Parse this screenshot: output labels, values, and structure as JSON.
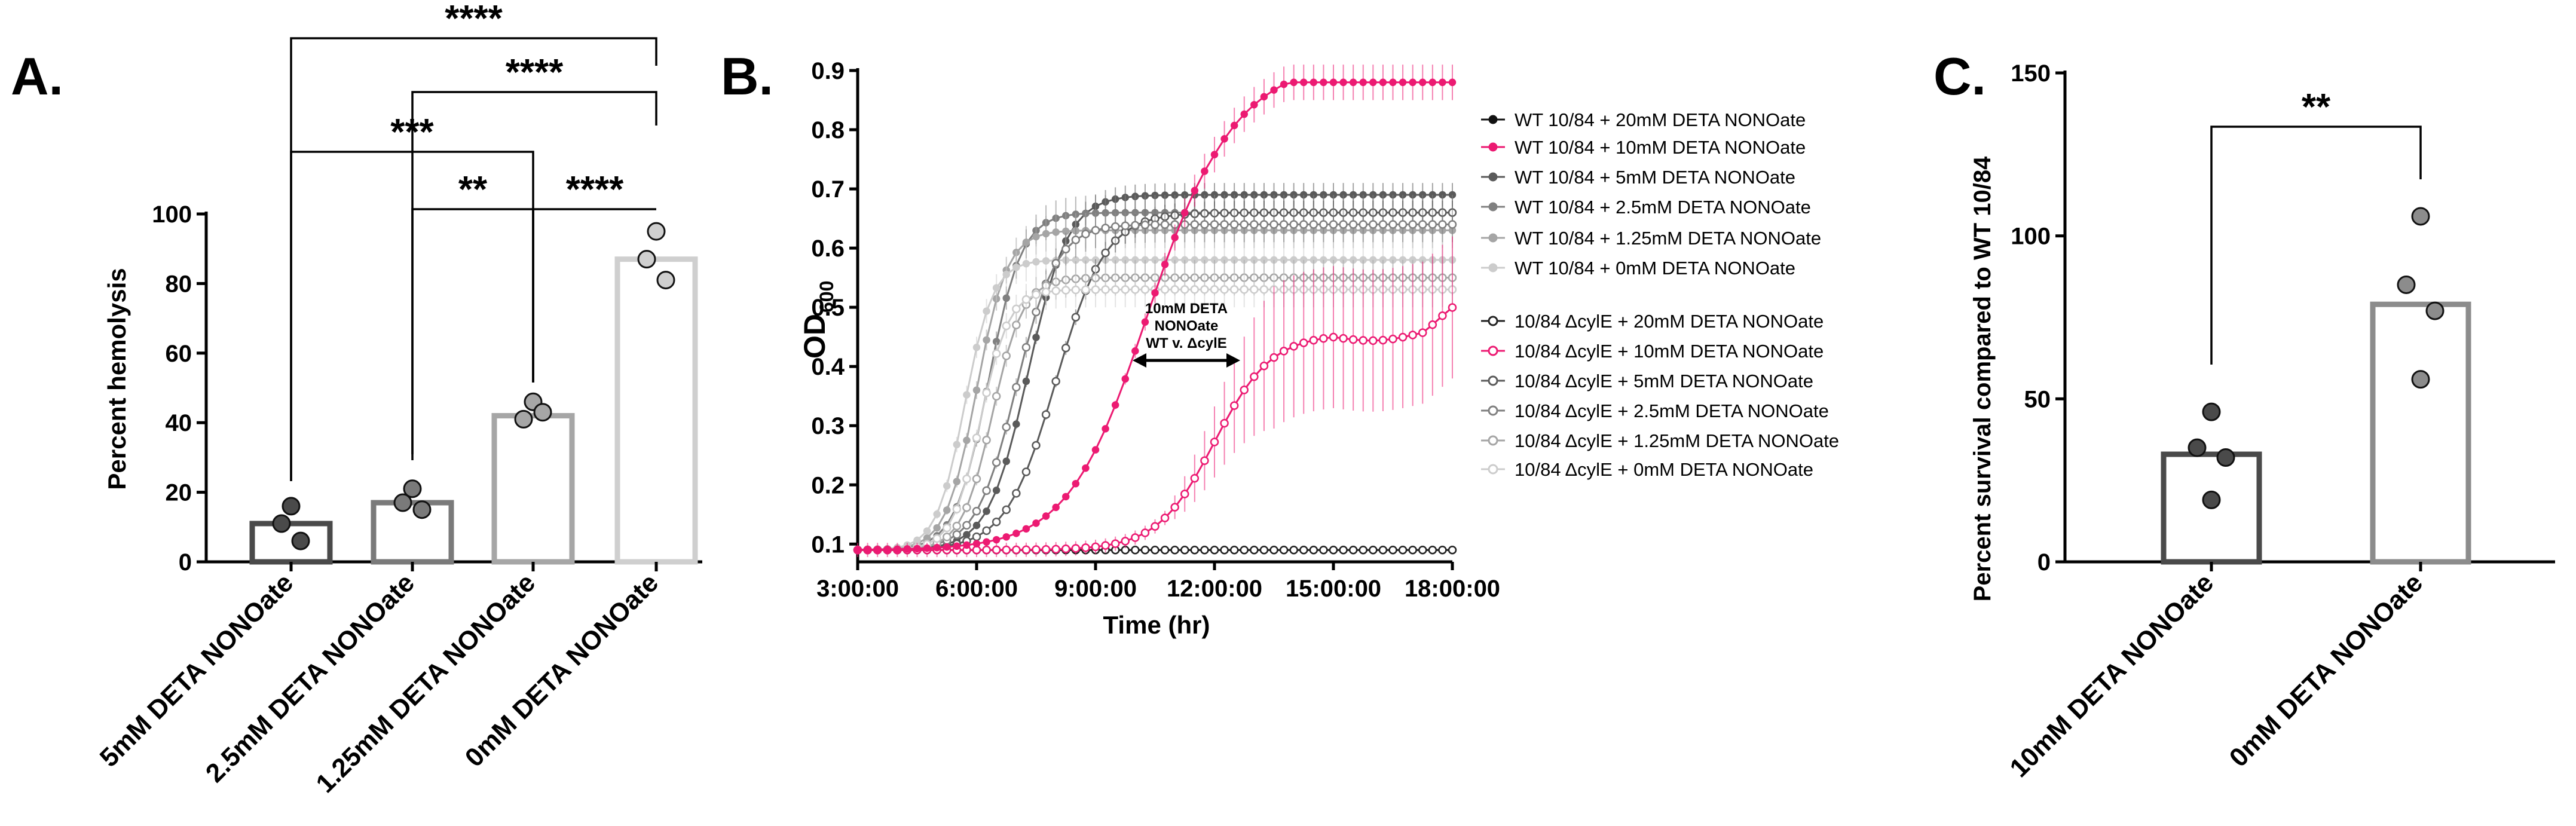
{
  "panel_labels": [
    "A.",
    "B.",
    "C."
  ],
  "chart_data": [
    {
      "type": "bar",
      "panel": "A.",
      "title": "",
      "xlabel": "",
      "ylabel": "Percent hemolysis",
      "ylim": [
        0,
        100
      ],
      "yticks": [
        "0",
        "20",
        "40",
        "60",
        "80",
        "100"
      ],
      "categories": [
        "5mM DETA NONOate",
        "2.5mM DETA NONOate",
        "1.25mM DETA NONOate",
        "0mM DETA NONOate"
      ],
      "values": [
        11,
        17,
        42,
        87
      ],
      "bar_colors": [
        "#4a4a4a",
        "#7a7a7a",
        "#a6a6a6",
        "#cfcfcf"
      ],
      "points": [
        [
          16,
          11,
          6
        ],
        [
          21,
          17,
          15
        ],
        [
          46,
          41,
          43
        ],
        [
          95,
          87,
          81
        ]
      ],
      "significance": [
        {
          "from": 0,
          "to": 3,
          "label": "****"
        },
        {
          "from": 1,
          "to": 3,
          "label": "****"
        },
        {
          "from": 0,
          "to": 2,
          "label": "***"
        },
        {
          "from": 1,
          "to": 2,
          "label": "**"
        },
        {
          "from": 2,
          "to": 3,
          "label": "****"
        }
      ]
    },
    {
      "type": "line",
      "panel": "B.",
      "title": "",
      "xlabel": "Time (hr)",
      "ylabel": "OD",
      "ylabel_sub": "600",
      "xlim": [
        3,
        18
      ],
      "ylim": [
        0.07,
        0.9
      ],
      "xticks": [
        {
          "v": 3,
          "label": "3:00:00"
        },
        {
          "v": 6,
          "label": "6:00:00"
        },
        {
          "v": 9,
          "label": "9:00:00"
        },
        {
          "v": 12,
          "label": "12:00:00"
        },
        {
          "v": 15,
          "label": "15:00:00"
        },
        {
          "v": 18,
          "label": "18:00:00"
        }
      ],
      "yticks": [
        "0.1",
        "0.2",
        "0.3",
        "0.4",
        "0.5",
        "0.6",
        "0.7",
        "0.8",
        "0.9"
      ],
      "annotation": [
        "10mM DETA",
        "NONOate",
        "WT v. ΔcylE"
      ],
      "series": [
        {
          "name": "WT 10/84 + 20mM DETA NONOate",
          "color": "#111111",
          "filled": true,
          "base": 0.09,
          "plateau": 0.09,
          "midpoint": 0,
          "slope": 1,
          "err": 0.004
        },
        {
          "name": "WT 10/84 + 10mM DETA NONOate",
          "color": "#ec1a72",
          "filled": true,
          "base": 0.09,
          "plateau": 0.88,
          "midpoint": 10.3,
          "slope": 1.0,
          "err": 0.03
        },
        {
          "name": "WT 10/84 + 5mM DETA NONOate",
          "color": "#5a5a5a",
          "filled": true,
          "base": 0.09,
          "plateau": 0.69,
          "midpoint": 7.3,
          "slope": 2.0,
          "err": 0.02
        },
        {
          "name": "WT 10/84 + 2.5mM DETA NONOate",
          "color": "#808080",
          "filled": true,
          "base": 0.09,
          "plateau": 0.66,
          "midpoint": 6.3,
          "slope": 2.4,
          "err": 0.03
        },
        {
          "name": "WT 10/84 + 1.25mM DETA NONOate",
          "color": "#a5a5a5",
          "filled": true,
          "base": 0.09,
          "plateau": 0.63,
          "midpoint": 6.0,
          "slope": 2.6,
          "err": 0.03
        },
        {
          "name": "WT 10/84 + 0mM DETA NONOate",
          "color": "#cccccc",
          "filled": true,
          "base": 0.09,
          "plateau": 0.58,
          "midpoint": 5.7,
          "slope": 2.8,
          "err": 0.03
        },
        {
          "name": "10/84 ΔcylE + 20mM DETA NONOate",
          "color": "#222222",
          "filled": false,
          "base": 0.09,
          "plateau": 0.09,
          "midpoint": 0,
          "slope": 1,
          "err": 0.003
        },
        {
          "name": "10/84 ΔcylE + 10mM DETA NONOate",
          "color": "#ec1a72",
          "filled": false,
          "base": 0.09,
          "plateau": 0.455,
          "midpoint": 12.0,
          "slope": 1.4,
          "err": 0.12
        },
        {
          "name": "10/84 ΔcylE + 5mM DETA NONOate",
          "color": "#5a5a5a",
          "filled": false,
          "base": 0.09,
          "plateau": 0.66,
          "midpoint": 8.0,
          "slope": 1.6,
          "err": 0.02
        },
        {
          "name": "10/84 ΔcylE + 2.5mM DETA NONOate",
          "color": "#808080",
          "filled": false,
          "base": 0.09,
          "plateau": 0.64,
          "midpoint": 7.0,
          "slope": 2.0,
          "err": 0.03
        },
        {
          "name": "10/84 ΔcylE + 1.25mM DETA NONOate",
          "color": "#a5a5a5",
          "filled": false,
          "base": 0.09,
          "plateau": 0.55,
          "midpoint": 6.4,
          "slope": 2.6,
          "err": 0.03
        },
        {
          "name": "10/84 ΔcylE + 0mM DETA NONOate",
          "color": "#cccccc",
          "filled": false,
          "base": 0.09,
          "plateau": 0.53,
          "midpoint": 6.1,
          "slope": 2.8,
          "err": 0.03
        }
      ]
    },
    {
      "type": "bar",
      "panel": "C.",
      "title": "",
      "xlabel": "",
      "ylabel": "Percent survival compared to WT 10/84",
      "ylim": [
        0,
        150
      ],
      "yticks": [
        "0",
        "50",
        "100",
        "150"
      ],
      "categories": [
        "10mM DETA NONOate",
        "0mM DETA NONOate"
      ],
      "values": [
        33,
        79
      ],
      "bar_colors": [
        "#4a4a4a",
        "#8c8c8c"
      ],
      "points": [
        [
          46,
          35,
          32,
          19
        ],
        [
          106,
          85,
          77,
          56
        ]
      ],
      "significance": [
        {
          "from": 0,
          "to": 1,
          "label": "**"
        }
      ]
    }
  ]
}
